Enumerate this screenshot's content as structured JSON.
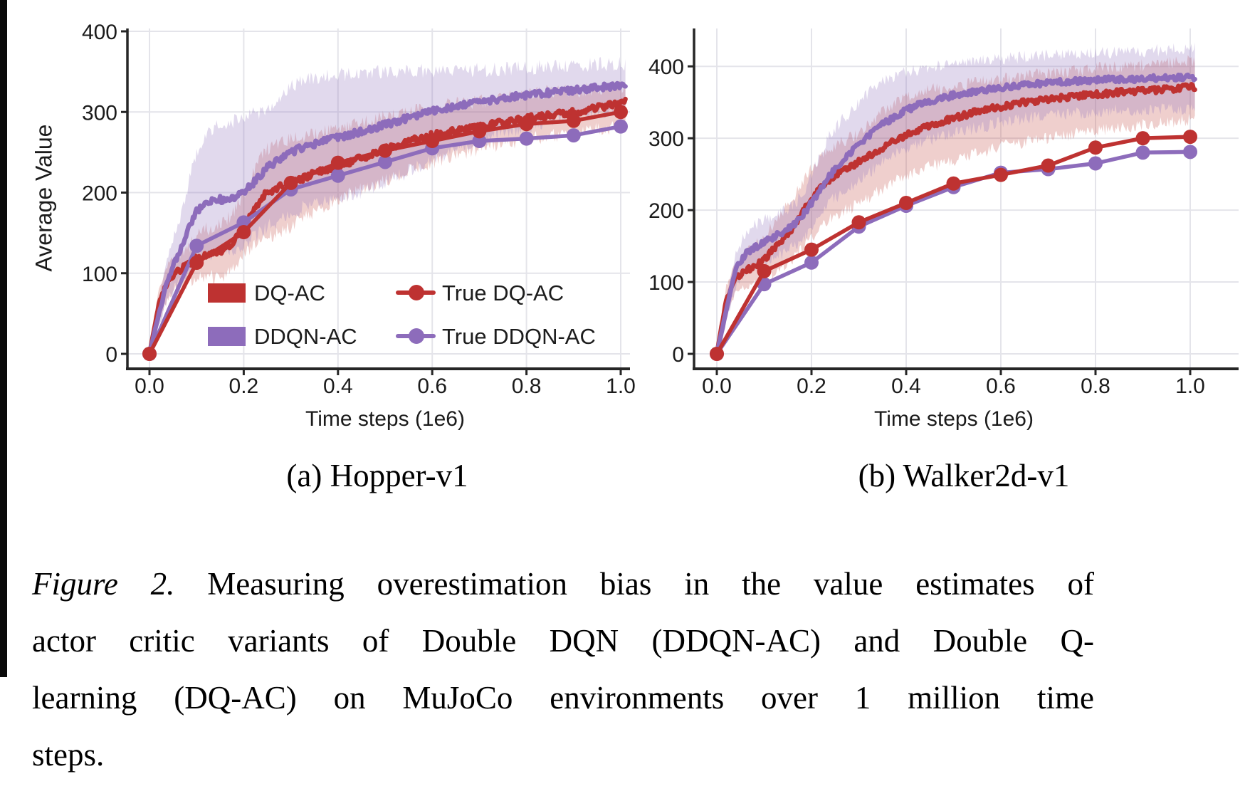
{
  "colors": {
    "red": "#be3231",
    "purple": "#8d6cbb",
    "red_band": "rgba(190,62,56,0.25)",
    "purple_band": "rgba(147,117,192,0.28)",
    "grid": "#e4e4ea",
    "spine": "#262626",
    "text": "#1b1b1b"
  },
  "legend": {
    "items": [
      {
        "label": "DQ-AC",
        "marker": "patch",
        "color_key": "red"
      },
      {
        "label": "DDQN-AC",
        "marker": "patch",
        "color_key": "purple"
      },
      {
        "label": "True DQ-AC",
        "marker": "line-dot",
        "color_key": "red"
      },
      {
        "label": "True DDQN-AC",
        "marker": "line-dot",
        "color_key": "purple"
      }
    ]
  },
  "caption": {
    "lead_italic": "Figure 2.",
    "line1_rest": " Measuring overestimation bias in the value estimates of",
    "line2": "actor critic variants of Double DQN (DDQN-AC) and Double Q-",
    "line3": "learning (DQ-AC) on MuJoCo environments over 1 million time",
    "line4": "steps."
  },
  "chart_data": [
    {
      "type": "line",
      "title": "(a) Hopper-v1",
      "xlabel": "Time steps (1e6)",
      "ylabel": "Average Value",
      "xlim": [
        0,
        1.05
      ],
      "ylim": [
        0,
        404
      ],
      "grid": true,
      "legend_position": "lower left inside plot",
      "xticks": [
        0.0,
        0.2,
        0.4,
        0.6,
        0.8,
        1.0
      ],
      "xtick_labels": [
        "0.0",
        "0.2",
        "0.4",
        "0.6",
        "0.8",
        "1.0"
      ],
      "yticks": [
        0,
        100,
        200,
        300,
        400
      ],
      "ytick_labels": [
        "0",
        "100",
        "200",
        "300",
        "400"
      ],
      "series": [
        {
          "name": "DQ-AC",
          "type": "mean_band",
          "color_key": "red",
          "x": [
            0,
            0.02,
            0.04,
            0.06,
            0.08,
            0.1,
            0.12,
            0.14,
            0.16,
            0.18,
            0.2,
            0.22,
            0.24,
            0.26,
            0.28,
            0.3,
            0.33,
            0.36,
            0.4,
            0.45,
            0.5,
            0.55,
            0.6,
            0.65,
            0.7,
            0.75,
            0.8,
            0.85,
            0.9,
            0.95,
            1.0,
            1.01
          ],
          "mean": [
            0,
            62,
            92,
            102,
            110,
            119,
            123,
            125,
            130,
            141,
            157,
            177,
            196,
            203,
            208,
            212,
            219,
            226,
            233,
            243,
            254,
            264,
            271,
            277,
            282,
            287,
            292,
            296,
            300,
            305,
            311,
            313
          ],
          "lo": [
            0,
            40,
            70,
            80,
            85,
            92,
            95,
            96,
            97,
            105,
            122,
            132,
            140,
            146,
            152,
            158,
            170,
            180,
            193,
            204,
            215,
            227,
            238,
            247,
            254,
            260,
            266,
            270,
            274,
            278,
            281,
            282
          ],
          "hi": [
            0,
            80,
            112,
            120,
            130,
            147,
            155,
            158,
            163,
            178,
            196,
            225,
            250,
            258,
            262,
            266,
            269,
            273,
            279,
            288,
            296,
            301,
            306,
            310,
            313,
            317,
            321,
            325,
            326,
            329,
            331,
            332
          ]
        },
        {
          "name": "DDQN-AC",
          "type": "mean_band",
          "color_key": "purple",
          "x": [
            0,
            0.02,
            0.04,
            0.06,
            0.08,
            0.1,
            0.12,
            0.14,
            0.16,
            0.18,
            0.2,
            0.22,
            0.25,
            0.28,
            0.3,
            0.33,
            0.36,
            0.4,
            0.45,
            0.5,
            0.55,
            0.6,
            0.65,
            0.7,
            0.75,
            0.8,
            0.85,
            0.9,
            0.95,
            1.0,
            1.01
          ],
          "mean": [
            0,
            50,
            95,
            123,
            150,
            177,
            189,
            192,
            191,
            194,
            201,
            212,
            231,
            243,
            250,
            257,
            262,
            268,
            276,
            284,
            293,
            301,
            307,
            312,
            317,
            321,
            324,
            327,
            330,
            333,
            334
          ],
          "lo": [
            0,
            35,
            70,
            85,
            100,
            112,
            120,
            125,
            128,
            131,
            135,
            144,
            157,
            168,
            174,
            183,
            189,
            193,
            201,
            214,
            226,
            241,
            253,
            263,
            273,
            282,
            290,
            296,
            300,
            303,
            304
          ],
          "hi": [
            0,
            70,
            120,
            160,
            205,
            250,
            272,
            283,
            287,
            289,
            292,
            297,
            304,
            322,
            331,
            339,
            343,
            346,
            348,
            350,
            351,
            351,
            352,
            352,
            353,
            355,
            356,
            358,
            359,
            360,
            360
          ]
        },
        {
          "name": "True DQ-AC",
          "type": "marker_line",
          "color_key": "red",
          "x": [
            0,
            0.1,
            0.2,
            0.3,
            0.4,
            0.5,
            0.6,
            0.7,
            0.8,
            0.9,
            1.0
          ],
          "values": [
            0,
            113,
            151,
            212,
            237,
            252,
            264,
            276,
            285,
            289,
            300
          ]
        },
        {
          "name": "True DDQN-AC",
          "type": "marker_line",
          "color_key": "purple",
          "x": [
            0,
            0.1,
            0.2,
            0.3,
            0.4,
            0.5,
            0.6,
            0.7,
            0.8,
            0.9,
            1.0
          ],
          "values": [
            0,
            134,
            163,
            204,
            221,
            238,
            255,
            264,
            267,
            271,
            282
          ]
        }
      ]
    },
    {
      "type": "line",
      "title": "(b) Walker2d-v1",
      "xlabel": "Time steps (1e6)",
      "ylabel": "",
      "xlim": [
        0,
        1.05
      ],
      "ylim": [
        0,
        452
      ],
      "grid": true,
      "legend_position": "none",
      "xticks": [
        0.0,
        0.2,
        0.4,
        0.6,
        0.8,
        1.0
      ],
      "xtick_labels": [
        "0.0",
        "0.2",
        "0.4",
        "0.6",
        "0.8",
        "1.0"
      ],
      "yticks": [
        0,
        100,
        200,
        300,
        400
      ],
      "ytick_labels": [
        "0",
        "100",
        "200",
        "300",
        "400"
      ],
      "series": [
        {
          "name": "DQ-AC",
          "type": "mean_band",
          "color_key": "red",
          "x": [
            0,
            0.02,
            0.04,
            0.06,
            0.08,
            0.1,
            0.12,
            0.14,
            0.16,
            0.18,
            0.2,
            0.23,
            0.26,
            0.3,
            0.34,
            0.38,
            0.42,
            0.46,
            0.5,
            0.55,
            0.6,
            0.65,
            0.7,
            0.75,
            0.8,
            0.85,
            0.9,
            0.95,
            1.0,
            1.01
          ],
          "mean": [
            0,
            75,
            105,
            115,
            122,
            132,
            145,
            160,
            175,
            196,
            216,
            238,
            252,
            267,
            283,
            298,
            310,
            319,
            328,
            337,
            344,
            350,
            354,
            358,
            361,
            364,
            366,
            368,
            371,
            371
          ],
          "lo": [
            0,
            55,
            85,
            95,
            98,
            105,
            112,
            122,
            130,
            145,
            162,
            185,
            196,
            208,
            225,
            243,
            255,
            262,
            268,
            278,
            288,
            295,
            300,
            305,
            310,
            314,
            318,
            322,
            326,
            326
          ],
          "hi": [
            0,
            95,
            125,
            138,
            150,
            162,
            180,
            198,
            215,
            235,
            258,
            283,
            295,
            305,
            330,
            352,
            362,
            368,
            372,
            377,
            382,
            386,
            390,
            394,
            397,
            400,
            402,
            405,
            408,
            408
          ]
        },
        {
          "name": "DDQN-AC",
          "type": "mean_band",
          "color_key": "purple",
          "x": [
            0,
            0.02,
            0.04,
            0.06,
            0.08,
            0.1,
            0.12,
            0.14,
            0.16,
            0.18,
            0.2,
            0.23,
            0.26,
            0.3,
            0.34,
            0.38,
            0.42,
            0.46,
            0.5,
            0.55,
            0.6,
            0.65,
            0.7,
            0.75,
            0.8,
            0.85,
            0.9,
            0.95,
            1.0,
            1.01
          ],
          "mean": [
            0,
            60,
            118,
            138,
            148,
            156,
            163,
            170,
            178,
            192,
            210,
            240,
            265,
            292,
            315,
            332,
            345,
            353,
            360,
            366,
            371,
            374,
            377,
            379,
            381,
            382,
            383,
            384,
            385,
            385
          ],
          "lo": [
            0,
            45,
            95,
            115,
            122,
            130,
            135,
            140,
            148,
            158,
            172,
            205,
            223,
            240,
            262,
            280,
            292,
            300,
            307,
            315,
            322,
            327,
            331,
            334,
            337,
            339,
            340,
            341,
            342,
            342
          ],
          "hi": [
            0,
            80,
            140,
            165,
            178,
            186,
            192,
            198,
            205,
            222,
            248,
            295,
            322,
            350,
            375,
            388,
            395,
            399,
            404,
            407,
            410,
            413,
            415,
            417,
            419,
            420,
            421,
            423,
            424,
            424
          ]
        },
        {
          "name": "True DQ-AC",
          "type": "marker_line",
          "color_key": "red",
          "x": [
            0,
            0.1,
            0.2,
            0.3,
            0.4,
            0.5,
            0.6,
            0.7,
            0.8,
            0.9,
            1.0
          ],
          "values": [
            0,
            115,
            145,
            183,
            210,
            237,
            249,
            262,
            287,
            300,
            302
          ]
        },
        {
          "name": "True DDQN-AC",
          "type": "marker_line",
          "color_key": "purple",
          "x": [
            0,
            0.1,
            0.2,
            0.3,
            0.4,
            0.5,
            0.6,
            0.7,
            0.8,
            0.9,
            1.0
          ],
          "values": [
            0,
            97,
            127,
            177,
            206,
            232,
            252,
            257,
            265,
            280,
            281
          ]
        }
      ]
    }
  ]
}
